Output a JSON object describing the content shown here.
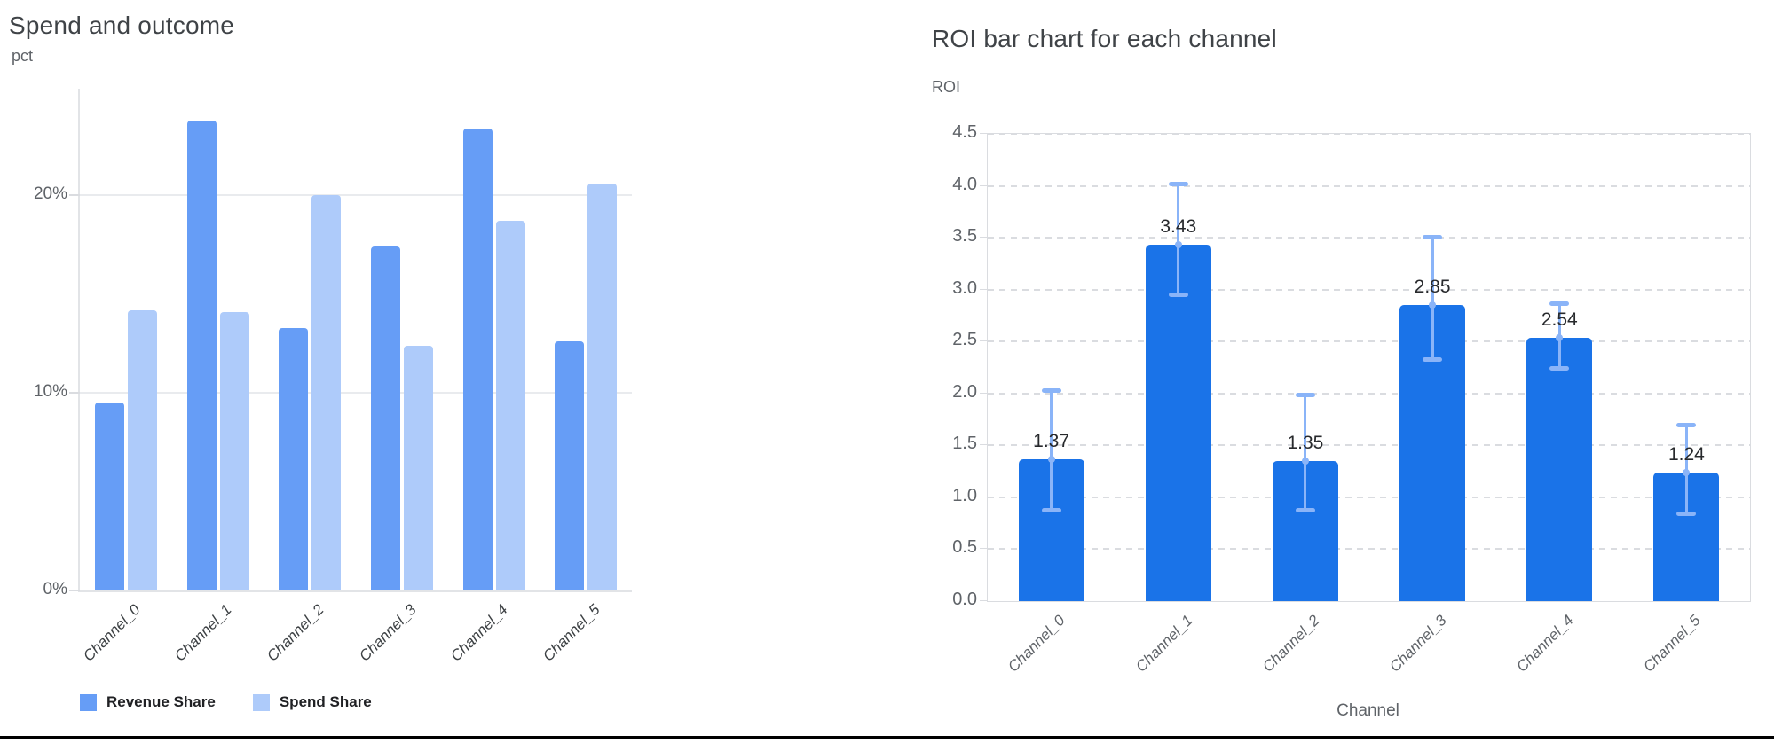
{
  "page": {
    "background": "#ffffff",
    "divider_color": "#000000"
  },
  "chart_data": [
    {
      "type": "bar",
      "title": "Spend and outcome",
      "xlabel": "",
      "ylabel": "pct",
      "categories": [
        "Channel_0",
        "Channel_1",
        "Channel_2",
        "Channel_3",
        "Channel_4",
        "Channel_5"
      ],
      "series": [
        {
          "name": "Revenue Share",
          "color": "#669df6",
          "values": [
            9.5,
            23.8,
            13.3,
            17.4,
            23.4,
            12.6
          ]
        },
        {
          "name": "Spend Share",
          "color": "#aecbfa",
          "values": [
            14.2,
            14.1,
            20.0,
            12.4,
            18.7,
            20.6
          ]
        }
      ],
      "unit": "percent",
      "y_ticks": [
        {
          "value": 0,
          "label": "0%"
        },
        {
          "value": 10,
          "label": "10%"
        },
        {
          "value": 20,
          "label": "20%"
        }
      ],
      "ylim": [
        0,
        25.4
      ],
      "grid": "solid",
      "legend_position": "bottom-left"
    },
    {
      "type": "bar",
      "title": "ROI bar chart for each channel",
      "xlabel": "Channel",
      "ylabel": "ROI",
      "categories": [
        "Channel_0",
        "Channel_1",
        "Channel_2",
        "Channel_3",
        "Channel_4",
        "Channel_5"
      ],
      "series": [
        {
          "name": "ROI",
          "color": "#1a73e8",
          "values": [
            1.37,
            3.43,
            1.35,
            2.85,
            2.54,
            1.24
          ]
        }
      ],
      "bar_labels": [
        "1.37",
        "3.43",
        "1.35",
        "2.85",
        "2.54",
        "1.24"
      ],
      "error_bars": {
        "color": "#8ab4f8",
        "low": [
          0.87,
          2.95,
          0.87,
          2.32,
          2.24,
          0.84
        ],
        "high": [
          2.03,
          4.02,
          1.99,
          3.51,
          2.87,
          1.7
        ]
      },
      "y_ticks": [
        {
          "value": 0,
          "label": "0.0"
        },
        {
          "value": 0.5,
          "label": "0.5"
        },
        {
          "value": 1,
          "label": "1.0"
        },
        {
          "value": 1.5,
          "label": "1.5"
        },
        {
          "value": 2,
          "label": "2.0"
        },
        {
          "value": 2.5,
          "label": "2.5"
        },
        {
          "value": 3,
          "label": "3.0"
        },
        {
          "value": 3.5,
          "label": "3.5"
        },
        {
          "value": 4,
          "label": "4.0"
        },
        {
          "value": 4.5,
          "label": "4.5"
        }
      ],
      "ylim": [
        0,
        4.5
      ],
      "grid": "dashed",
      "legend_position": "none"
    }
  ]
}
